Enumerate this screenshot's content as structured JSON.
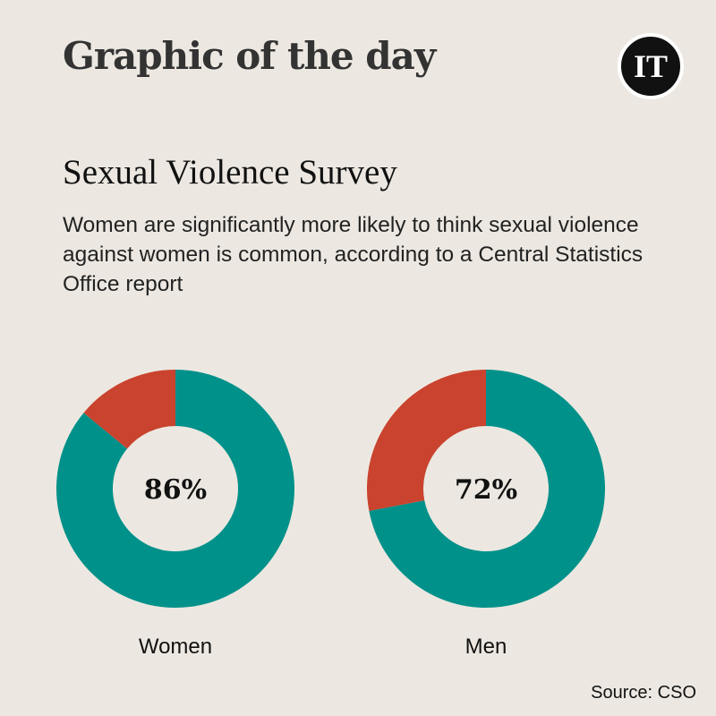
{
  "header": {
    "title": "Graphic of the day",
    "logo": "IT"
  },
  "colors": {
    "background": "#ECE8E1",
    "primary": "#00918A",
    "remainder": "#C9432E"
  },
  "chart_data": {
    "type": "pie",
    "title": "Sexual Violence Survey",
    "subtitle": "Women are significantly more likely to think sexual violence against women is common, according to a Central Statistics Office report",
    "donuts": [
      {
        "label": "Women",
        "value": 86,
        "value_label": "86%"
      },
      {
        "label": "Men",
        "value": 72,
        "value_label": "72%"
      }
    ]
  },
  "source": "Source: CSO"
}
